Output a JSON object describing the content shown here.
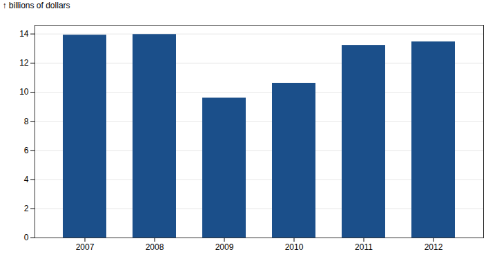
{
  "chart_data": {
    "type": "bar",
    "categories": [
      "2007",
      "2008",
      "2009",
      "2010",
      "2011",
      "2012"
    ],
    "values": [
      13.92,
      13.97,
      9.6,
      10.62,
      13.22,
      13.46
    ],
    "ylabel": "billions of dollars",
    "color": "#1B4F8A",
    "ylim": [
      0,
      14.6
    ],
    "yticks": [
      0,
      2,
      4,
      6,
      8,
      10,
      12,
      14
    ],
    "grid": true
  }
}
